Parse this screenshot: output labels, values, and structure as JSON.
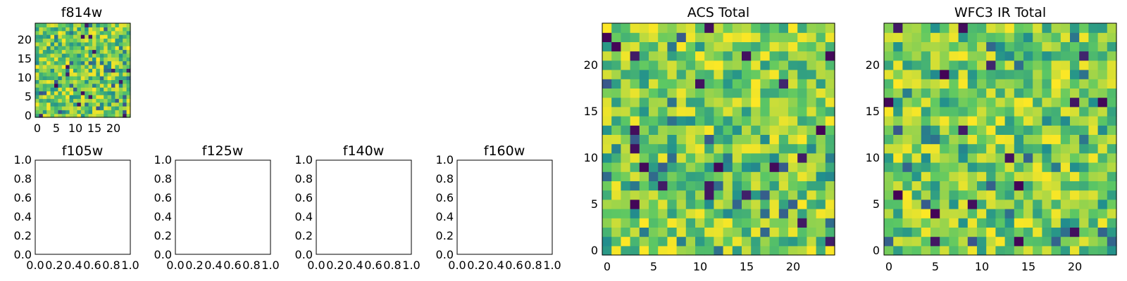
{
  "figure": {
    "background": "#ffffff",
    "colormap": "viridis",
    "colormap_stops": [
      "#440154",
      "#3b528b",
      "#21908d",
      "#5dc863",
      "#fde725"
    ]
  },
  "chart_data": [
    {
      "id": "f814w",
      "type": "heatmap",
      "title": "f814w",
      "grid_size": [
        25,
        25
      ],
      "xlim": [
        -0.5,
        24.5
      ],
      "ylim": [
        -0.5,
        24.5
      ],
      "x_ticks": [
        0,
        5,
        10,
        15,
        20
      ],
      "x_tick_labels": [
        "0",
        "5",
        "10",
        "15",
        "20"
      ],
      "y_ticks": [
        0,
        5,
        10,
        15,
        20
      ],
      "y_tick_labels": [
        "0",
        "5",
        "10",
        "15",
        "20"
      ],
      "seed": 814,
      "value_range": [
        0,
        1
      ],
      "note_values": "random-looking pixel noise field, values near 0.6 mean with rare low pixels"
    },
    {
      "id": "f105w",
      "type": "empty",
      "title": "f105w",
      "xlim": [
        0,
        1
      ],
      "ylim": [
        0,
        1
      ],
      "x_tick_labels": [
        "0.0",
        "0.2",
        "0.4",
        "0.6",
        "0.8",
        "1.0"
      ],
      "y_tick_labels": [
        "0.0",
        "0.2",
        "0.4",
        "0.6",
        "0.8",
        "1.0"
      ]
    },
    {
      "id": "f125w",
      "type": "empty",
      "title": "f125w",
      "xlim": [
        0,
        1
      ],
      "ylim": [
        0,
        1
      ],
      "x_tick_labels": [
        "0.0",
        "0.2",
        "0.4",
        "0.6",
        "0.8",
        "1.0"
      ],
      "y_tick_labels": [
        "0.0",
        "0.2",
        "0.4",
        "0.6",
        "0.8",
        "1.0"
      ]
    },
    {
      "id": "f140w",
      "type": "empty",
      "title": "f140w",
      "xlim": [
        0,
        1
      ],
      "ylim": [
        0,
        1
      ],
      "x_tick_labels": [
        "0.0",
        "0.2",
        "0.4",
        "0.6",
        "0.8",
        "1.0"
      ],
      "y_tick_labels": [
        "0.0",
        "0.2",
        "0.4",
        "0.6",
        "0.8",
        "1.0"
      ]
    },
    {
      "id": "f160w",
      "type": "empty",
      "title": "f160w",
      "xlim": [
        0,
        1
      ],
      "ylim": [
        0,
        1
      ],
      "x_tick_labels": [
        "0.0",
        "0.2",
        "0.4",
        "0.6",
        "0.8",
        "1.0"
      ],
      "y_tick_labels": [
        "0.0",
        "0.2",
        "0.4",
        "0.6",
        "0.8",
        "1.0"
      ]
    },
    {
      "id": "acs_total",
      "type": "heatmap",
      "title": "ACS Total",
      "grid_size": [
        25,
        25
      ],
      "xlim": [
        -0.5,
        24.5
      ],
      "ylim": [
        -0.5,
        24.5
      ],
      "x_ticks": [
        0,
        5,
        10,
        15,
        20
      ],
      "x_tick_labels": [
        "0",
        "5",
        "10",
        "15",
        "20"
      ],
      "y_ticks": [
        0,
        5,
        10,
        15,
        20
      ],
      "y_tick_labels": [
        "0",
        "5",
        "10",
        "15",
        "20"
      ],
      "seed": 1234,
      "value_range": [
        0,
        1
      ]
    },
    {
      "id": "wfc3_ir_total",
      "type": "heatmap",
      "title": "WFC3 IR Total",
      "grid_size": [
        25,
        25
      ],
      "xlim": [
        -0.5,
        24.5
      ],
      "ylim": [
        -0.5,
        24.5
      ],
      "x_ticks": [
        0,
        5,
        10,
        15,
        20
      ],
      "x_tick_labels": [
        "0",
        "5",
        "10",
        "15",
        "20"
      ],
      "y_ticks": [
        0,
        5,
        10,
        15,
        20
      ],
      "y_tick_labels": [
        "0",
        "5",
        "10",
        "15",
        "20"
      ],
      "seed": 5678,
      "value_range": [
        0,
        1
      ]
    }
  ]
}
